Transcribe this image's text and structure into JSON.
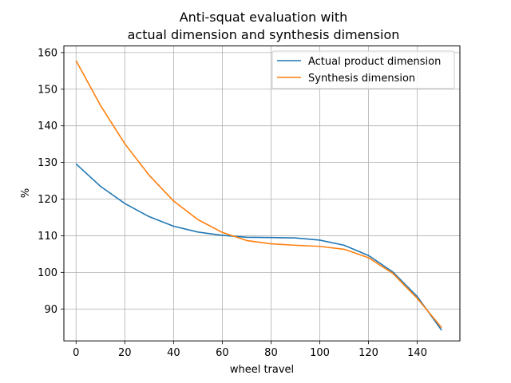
{
  "chart_data": {
    "type": "line",
    "title_lines": [
      "Anti-squat evaluation with",
      "actual dimension and synthesis dimension"
    ],
    "xlabel": "wheel travel",
    "ylabel": "%",
    "xlim": [
      -5,
      157.5
    ],
    "ylim": [
      81.3,
      161.8
    ],
    "xticks": [
      0,
      20,
      40,
      60,
      80,
      100,
      120,
      140
    ],
    "yticks": [
      90,
      100,
      110,
      120,
      130,
      140,
      150,
      160
    ],
    "grid": true,
    "legend_position": "top-right",
    "x": [
      0,
      10,
      20,
      30,
      40,
      50,
      60,
      70,
      80,
      90,
      100,
      110,
      120,
      130,
      140,
      150
    ],
    "series": [
      {
        "name": "Actual product dimension",
        "color": "#1f77b4",
        "values": [
          129.6,
          123.5,
          118.8,
          115.2,
          112.6,
          111.0,
          110.1,
          109.6,
          109.5,
          109.4,
          108.8,
          107.4,
          104.6,
          100.1,
          93.4,
          84.2
        ]
      },
      {
        "name": "Synthesis dimension",
        "color": "#ff7f0e",
        "values": [
          157.8,
          145.6,
          135.1,
          126.5,
          119.5,
          114.4,
          110.9,
          108.7,
          107.8,
          107.4,
          107.1,
          106.3,
          104.0,
          99.7,
          92.9,
          84.9
        ]
      }
    ]
  }
}
